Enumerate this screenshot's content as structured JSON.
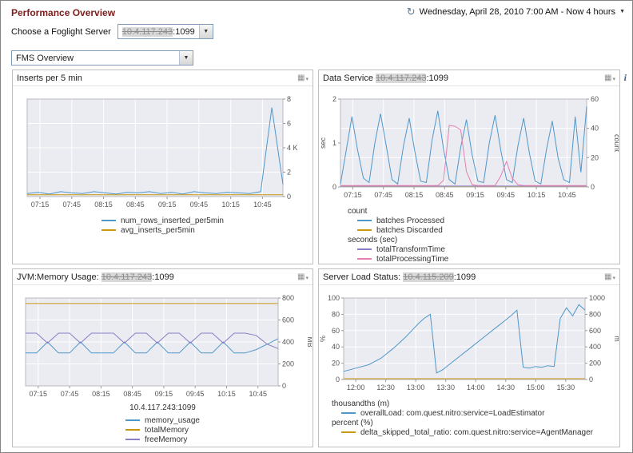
{
  "page": {
    "title": "Performance Overview",
    "server_picker_label": "Choose a Foglight Server",
    "server_ip": "10.4.117.243",
    "server_port": ":1099",
    "time_range": "Wednesday, April 28, 2010 7:00 AM - Now 4 hours",
    "view_selector": "FMS Overview"
  },
  "icons": {
    "time": "↻",
    "dropdown": "▼",
    "options_grid": "▦",
    "options_arrow": "▾",
    "info": "i"
  },
  "colors": {
    "title_maroon": "#7b1d1d",
    "series_blue": "#4f97c9",
    "series_orange": "#c79810",
    "series_purple": "#8b7dc6",
    "series_pink": "#e57fb1",
    "plot_bg": "#ebebf2"
  },
  "panels": [
    {
      "title_prefix": "Inserts per 5 min",
      "ip": "",
      "port": "",
      "chart_data": {
        "type": "line",
        "x_ticks": [
          "07:15",
          "07:45",
          "08:15",
          "08:45",
          "09:15",
          "09:45",
          "10:15",
          "10:45"
        ],
        "right_axis": {
          "min": 0,
          "max": 8,
          "label": "",
          "ticks": [
            [
              0,
              "0"
            ],
            [
              2,
              "2"
            ],
            [
              4,
              "4 K"
            ],
            [
              6,
              "6"
            ],
            [
              8,
              "8"
            ]
          ]
        },
        "series": [
          {
            "name": "num_rows_inserted_per5min",
            "color": "#4f97c9",
            "axis": "right",
            "values": [
              0.25,
              0.35,
              0.2,
              0.4,
              0.3,
              0.25,
              0.4,
              0.3,
              0.2,
              0.35,
              0.3,
              0.4,
              0.25,
              0.35,
              0.2,
              0.4,
              0.3,
              0.25,
              0.35,
              0.3,
              0.25,
              0.4,
              7.3,
              1.0
            ]
          },
          {
            "name": "avg_inserts_per5min",
            "color": "#c79810",
            "axis": "right",
            "values": [
              0.15,
              0.15
            ]
          }
        ]
      }
    },
    {
      "title_prefix": "Data Service ",
      "ip": "10.4.117.243",
      "port": ":1099",
      "legend_headers": [
        "count",
        "seconds (sec)"
      ],
      "chart_data": {
        "type": "line",
        "x_ticks": [
          "07:15",
          "07:45",
          "08:15",
          "08:45",
          "09:15",
          "09:45",
          "10:15",
          "10:45"
        ],
        "left_axis": {
          "min": 0,
          "max": 2,
          "label": "sec",
          "ticks": [
            [
              0,
              "0"
            ],
            [
              1,
              "1"
            ],
            [
              2,
              "2"
            ]
          ]
        },
        "right_axis": {
          "min": 0,
          "max": 60,
          "label": "count",
          "ticks": [
            [
              0,
              "0"
            ],
            [
              20,
              "20"
            ],
            [
              40,
              "40"
            ],
            [
              60,
              "60"
            ]
          ]
        },
        "series": [
          {
            "name": "batches Processed",
            "color": "#4f97c9",
            "axis": "right",
            "values": [
              2,
              25,
              48,
              25,
              6,
              3,
              30,
              50,
              28,
              5,
              2,
              28,
              47,
              24,
              4,
              3,
              32,
              52,
              26,
              5,
              2,
              27,
              46,
              22,
              4,
              3,
              30,
              49,
              25,
              5,
              3,
              28,
              47,
              23,
              4,
              2,
              26,
              45,
              20,
              5,
              3,
              48,
              10,
              55
            ]
          },
          {
            "name": "batches Discarded",
            "color": "#c79810",
            "axis": "right",
            "values": [
              0.5,
              0.5
            ]
          },
          {
            "name": "totalTransformTime",
            "color": "#8b7dc6",
            "axis": "left",
            "values": [
              0.02,
              0.02
            ]
          },
          {
            "name": "totalProcessingTime",
            "color": "#e57fb1",
            "axis": "left",
            "values": [
              0.03,
              0.03,
              0.03,
              0.03,
              0.03,
              0.03,
              0.03,
              0.03,
              0.03,
              0.03,
              0.03,
              0.03,
              0.03,
              0.03,
              0.03,
              0.03,
              0.03,
              0.03,
              0.15,
              1.4,
              1.38,
              1.3,
              0.35,
              0.05,
              0.03,
              0.03,
              0.03,
              0.03,
              0.25,
              0.58,
              0.2,
              0.05,
              0.03,
              0.03,
              0.03,
              0.03,
              0.03,
              0.03,
              0.03,
              0.03,
              0.03,
              0.03,
              0.03,
              0.03
            ]
          }
        ]
      }
    },
    {
      "title_prefix": "JVM:Memory Usage: ",
      "ip": "10.4.117.243",
      "port": ":1099",
      "caption": "10.4.117.243:1099",
      "chart_data": {
        "type": "line",
        "x_ticks": [
          "07:15",
          "07:45",
          "08:15",
          "08:45",
          "09:15",
          "09:45",
          "10:15",
          "10:45"
        ],
        "right_axis": {
          "min": 0,
          "max": 800,
          "label": "MB",
          "ticks": [
            [
              0,
              "0"
            ],
            [
              200,
              "200"
            ],
            [
              400,
              "400"
            ],
            [
              600,
              "600"
            ],
            [
              800,
              "800"
            ]
          ]
        },
        "series": [
          {
            "name": "memory_usage",
            "color": "#4f97c9",
            "axis": "right",
            "values": [
              300,
              300,
              400,
              300,
              300,
              400,
              300,
              300,
              300,
              400,
              300,
              300,
              400,
              300,
              300,
              400,
              300,
              300,
              400,
              300,
              300,
              330,
              380,
              430
            ]
          },
          {
            "name": "totalMemory",
            "color": "#c79810",
            "axis": "right",
            "values": [
              750,
              750
            ]
          },
          {
            "name": "freeMemory",
            "color": "#8b7dc6",
            "axis": "right",
            "values": [
              480,
              480,
              390,
              480,
              480,
              390,
              480,
              480,
              480,
              390,
              480,
              480,
              390,
              480,
              480,
              390,
              480,
              480,
              390,
              480,
              480,
              460,
              380,
              340
            ]
          }
        ]
      }
    },
    {
      "title_prefix": "Server Load Status: ",
      "ip": "10.4.115.209",
      "port": ":1099",
      "legend_headers": [
        "thousandths (m)",
        "percent (%)"
      ],
      "chart_data": {
        "type": "line",
        "x_ticks": [
          "12:00",
          "12:30",
          "13:00",
          "13:30",
          "14:00",
          "14:30",
          "15:00",
          "15:30"
        ],
        "left_axis": {
          "min": 0,
          "max": 100,
          "label": "%",
          "ticks": [
            [
              0,
              "0"
            ],
            [
              20,
              "20"
            ],
            [
              40,
              "40"
            ],
            [
              60,
              "60"
            ],
            [
              80,
              "80"
            ],
            [
              100,
              "100"
            ]
          ]
        },
        "right_axis": {
          "min": 0,
          "max": 1000,
          "label": "m",
          "ticks": [
            [
              0,
              "0"
            ],
            [
              200,
              "200"
            ],
            [
              400,
              "400"
            ],
            [
              600,
              "600"
            ],
            [
              800,
              "800"
            ],
            [
              1000,
              "1000"
            ]
          ]
        },
        "series": [
          {
            "name": "overallLoad: com.quest.nitro:service=LoadEstimator",
            "color": "#4f97c9",
            "axis": "right",
            "values": [
              100,
              120,
              140,
              160,
              180,
              220,
              260,
              320,
              380,
              450,
              520,
              600,
              680,
              750,
              800,
              80,
              120,
              180,
              240,
              300,
              360,
              420,
              480,
              540,
              600,
              660,
              720,
              780,
              850,
              150,
              140,
              160,
              150,
              170,
              160,
              750,
              880,
              780,
              920,
              850
            ]
          },
          {
            "name": "delta_skipped_total_ratio: com.quest.nitro:service=AgentManager",
            "color": "#c79810",
            "axis": "left",
            "values": [
              1,
              1
            ]
          }
        ]
      }
    }
  ]
}
